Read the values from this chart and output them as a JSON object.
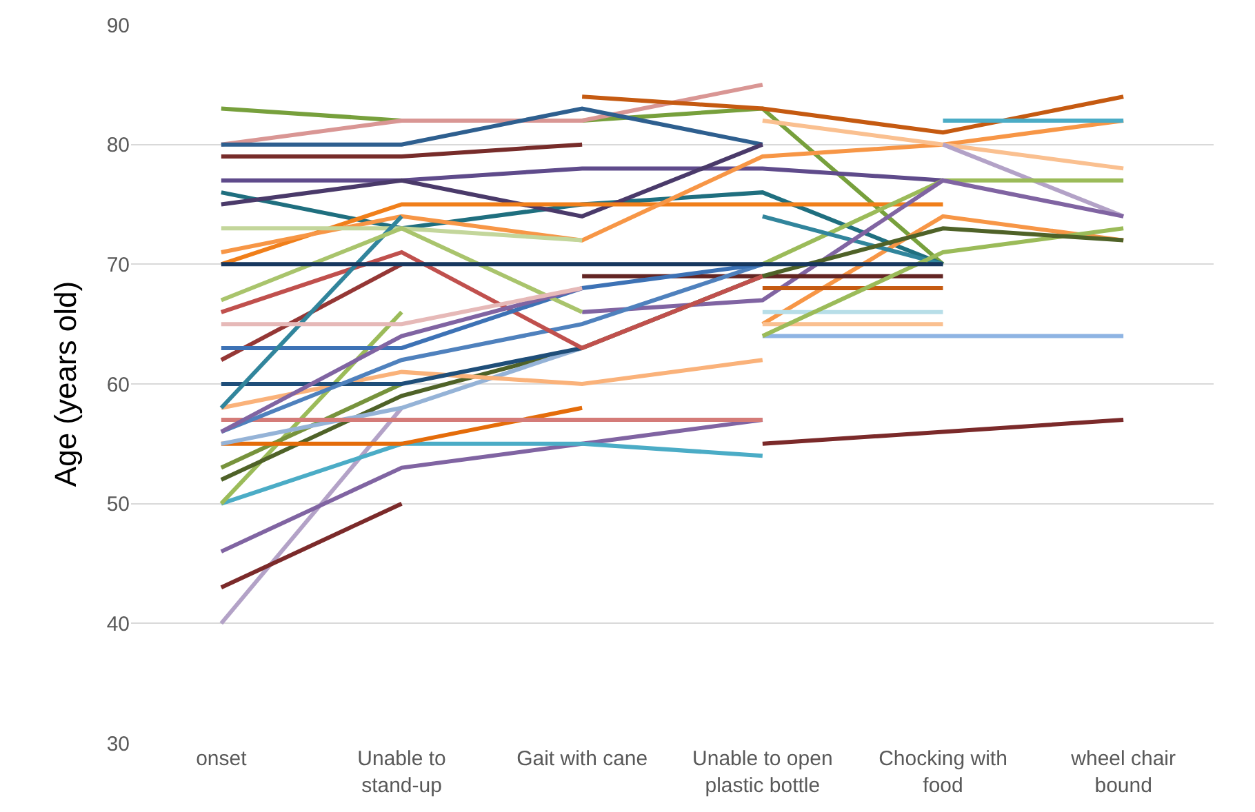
{
  "chart_data": {
    "type": "line",
    "ylabel": "Age (years old)",
    "categories": [
      "onset",
      "Unable to\nstand-up",
      "Gait with cane",
      "Unable to open\nplastic bottle",
      "Chocking with\nfood",
      "wheel chair\nbound"
    ],
    "ylim": [
      30,
      90
    ],
    "yticks": [
      30,
      40,
      50,
      60,
      70,
      80,
      90
    ],
    "grid": "y",
    "marker": "none",
    "line_style": "solid",
    "series": [
      {
        "color": "#77a03c",
        "values": [
          83,
          82,
          82,
          83,
          70,
          null
        ]
      },
      {
        "color": "#d99694",
        "values": [
          80,
          82,
          82,
          85,
          null,
          null
        ]
      },
      {
        "color": "#2e5f8f",
        "values": [
          80,
          80,
          83,
          80,
          null,
          null
        ]
      },
      {
        "color": "#772c2a",
        "values": [
          79,
          79,
          80,
          null,
          null,
          null
        ]
      },
      {
        "color": "#5f4b8b",
        "values": [
          77,
          77,
          78,
          78,
          77,
          null
        ]
      },
      {
        "color": "#1f6f7f",
        "values": [
          76,
          73,
          75,
          76,
          70,
          null
        ]
      },
      {
        "color": "#4a3a6a",
        "values": [
          75,
          77,
          74,
          80,
          null,
          null
        ]
      },
      {
        "color": "#f07f1a",
        "values": [
          70,
          75,
          75,
          75,
          75,
          null
        ]
      },
      {
        "color": "#f79646",
        "values": [
          71,
          74,
          72,
          79,
          80,
          82
        ]
      },
      {
        "color": "#c3d69b",
        "values": [
          73,
          73,
          72,
          null,
          null,
          null
        ]
      },
      {
        "color": "#c55a11",
        "values": [
          null,
          null,
          84,
          83,
          81,
          84
        ]
      },
      {
        "color": "#fac090",
        "values": [
          null,
          null,
          null,
          82,
          80,
          78
        ]
      },
      {
        "color": "#b3a2c7",
        "values": [
          null,
          null,
          null,
          null,
          80,
          74
        ]
      },
      {
        "color": "#9bbb59",
        "values": [
          null,
          null,
          null,
          70,
          77,
          77
        ]
      },
      {
        "color": "#8eb4e3",
        "values": [
          null,
          null,
          null,
          64,
          64,
          64
        ]
      },
      {
        "color": "#7b2a2a",
        "values": [
          null,
          null,
          null,
          55,
          56,
          57
        ]
      },
      {
        "color": "#4bacc6",
        "values": [
          null,
          null,
          null,
          null,
          82,
          82
        ]
      },
      {
        "color": "#f79646",
        "values": [
          null,
          null,
          null,
          65,
          74,
          72
        ]
      },
      {
        "color": "#31859c",
        "values": [
          null,
          null,
          null,
          74,
          70,
          null
        ]
      },
      {
        "color": "#8064a2",
        "values": [
          null,
          null,
          66,
          67,
          77,
          74
        ]
      },
      {
        "color": "#632523",
        "values": [
          null,
          null,
          69,
          69,
          69,
          null
        ]
      },
      {
        "color": "#c55a11",
        "values": [
          null,
          null,
          null,
          68,
          68,
          null
        ]
      },
      {
        "color": "#b7dee8",
        "values": [
          null,
          null,
          null,
          66,
          66,
          null
        ]
      },
      {
        "color": "#fac090",
        "values": [
          null,
          null,
          null,
          65,
          65,
          null
        ]
      },
      {
        "color": "#9bbb59",
        "values": [
          null,
          null,
          null,
          64,
          71,
          73
        ]
      },
      {
        "color": "#b3a2c7",
        "values": [
          40,
          58,
          null,
          null,
          null,
          null
        ]
      },
      {
        "color": "#7b2a2a",
        "values": [
          43,
          50,
          null,
          null,
          null,
          null
        ]
      },
      {
        "color": "#8064a2",
        "values": [
          46,
          53,
          55,
          57,
          null,
          null
        ]
      },
      {
        "color": "#4bacc6",
        "values": [
          50,
          55,
          55,
          54,
          null,
          null
        ]
      },
      {
        "color": "#9bbb59",
        "values": [
          50,
          66,
          null,
          null,
          null,
          null
        ]
      },
      {
        "color": "#4f6228",
        "values": [
          52,
          59,
          63,
          69,
          73,
          72
        ]
      },
      {
        "color": "#77933c",
        "values": [
          53,
          60,
          null,
          null,
          null,
          null
        ]
      },
      {
        "color": "#e46c0a",
        "values": [
          55,
          55,
          58,
          null,
          null,
          null
        ]
      },
      {
        "color": "#95b3d7",
        "values": [
          55,
          58,
          63,
          null,
          null,
          null
        ]
      },
      {
        "color": "#d47b78",
        "values": [
          57,
          57,
          57,
          57,
          null,
          null
        ]
      },
      {
        "color": "#fab27a",
        "values": [
          58,
          61,
          60,
          62,
          null,
          null
        ]
      },
      {
        "color": "#1f4e79",
        "values": [
          60,
          60,
          63,
          null,
          null,
          null
        ]
      },
      {
        "color": "#4f81bd",
        "values": [
          56,
          62,
          65,
          70,
          null,
          null
        ]
      },
      {
        "color": "#953735",
        "values": [
          62,
          70,
          null,
          null,
          null,
          null
        ]
      },
      {
        "color": "#c0504d",
        "values": [
          66,
          71,
          63,
          69,
          null,
          null
        ]
      },
      {
        "color": "#3d72b5",
        "values": [
          63,
          63,
          68,
          70,
          null,
          null
        ]
      },
      {
        "color": "#31859c",
        "values": [
          58,
          74,
          null,
          null,
          null,
          null
        ]
      },
      {
        "color": "#a9c46c",
        "values": [
          67,
          73,
          66,
          null,
          null,
          null
        ]
      },
      {
        "color": "#8064a2",
        "values": [
          56,
          64,
          68,
          null,
          null,
          null
        ]
      },
      {
        "color": "#17375e",
        "values": [
          70,
          70,
          70,
          70,
          70,
          null
        ]
      },
      {
        "color": "#e6b9b8",
        "values": [
          65,
          65,
          68,
          null,
          null,
          null
        ]
      }
    ]
  }
}
